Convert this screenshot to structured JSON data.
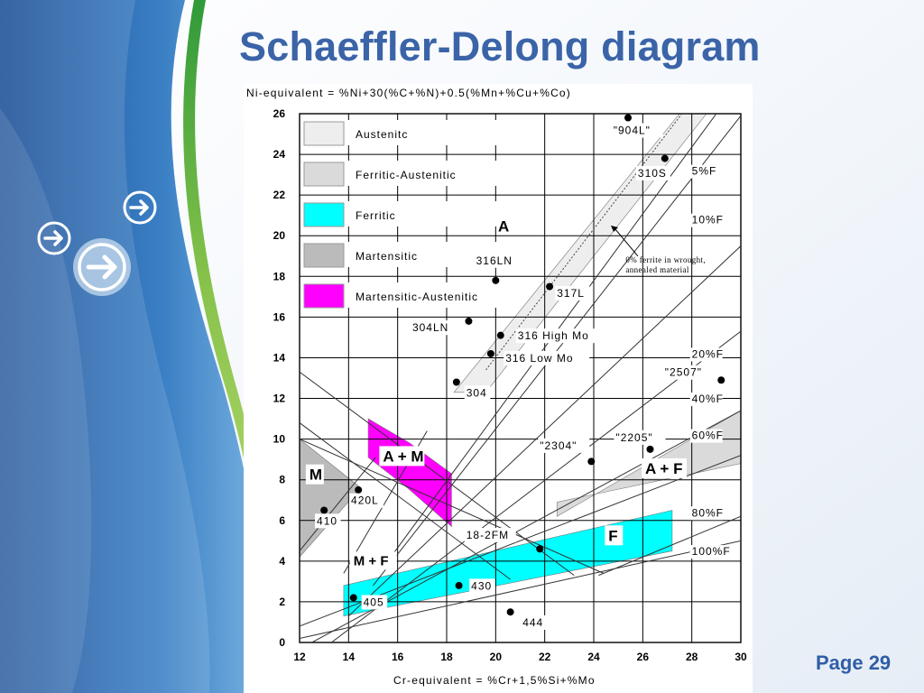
{
  "slide": {
    "title": "Schaeffler-Delong diagram",
    "page_label": "Page 29"
  },
  "colors": {
    "title": "#3b64a8",
    "austenitic": "#eeeeee",
    "ferritic_austenitic": "#dadada",
    "ferritic": "#00ffff",
    "martensitic": "#bbbbbb",
    "martensitic_austenitic": "#ff00ff",
    "grid": "#000000"
  },
  "chart_data": {
    "type": "diagram",
    "xlabel": "Cr-equivalent = %Cr+1,5%Si+%Mo",
    "ylabel": "Ni-equivalent = %Ni+30(%C+%N)+0.5(%Mn+%Cu+%Co)",
    "xlim": [
      12,
      30
    ],
    "ylim": [
      0,
      26
    ],
    "x_ticks": [
      12,
      14,
      16,
      18,
      20,
      22,
      24,
      26,
      28,
      30
    ],
    "y_ticks": [
      0,
      2,
      4,
      6,
      8,
      10,
      12,
      14,
      16,
      18,
      20,
      22,
      24,
      26
    ],
    "grid": true,
    "legend": [
      {
        "label": "Austenitc",
        "color": "#eeeeee"
      },
      {
        "label": "Ferritic-Austenitic",
        "color": "#dadada"
      },
      {
        "label": "Ferritic",
        "color": "#00ffff"
      },
      {
        "label": "Martensitic",
        "color": "#bbbbbb"
      },
      {
        "label": "Martensitic-Austenitic",
        "color": "#ff00ff"
      }
    ],
    "regions": [
      {
        "label": "A",
        "fill": "#eeeeee",
        "label_at": [
          20.1,
          20.2
        ],
        "polygon": [
          [
            18.3,
            12.3
          ],
          [
            19.6,
            12.3
          ],
          [
            28.6,
            26.0
          ],
          [
            27.5,
            26.0
          ]
        ]
      },
      {
        "label": "A + F",
        "fill": "#dadada",
        "label_at": [
          26.1,
          8.3
        ],
        "polygon": [
          [
            22.5,
            6.2
          ],
          [
            30.0,
            11.4
          ],
          [
            30.0,
            8.8
          ],
          [
            22.5,
            6.9
          ]
        ]
      },
      {
        "label": "F",
        "fill": "#00ffff",
        "label_at": [
          24.6,
          5.0
        ],
        "polygon": [
          [
            13.8,
            2.8
          ],
          [
            27.2,
            6.5
          ],
          [
            27.2,
            4.5
          ],
          [
            13.8,
            1.3
          ]
        ]
      },
      {
        "label": "M",
        "fill": "#bbbbbb",
        "label_at": [
          12.4,
          8.0
        ],
        "polygon": [
          [
            12.0,
            10.0
          ],
          [
            14.5,
            7.6
          ],
          [
            12.0,
            4.2
          ]
        ]
      },
      {
        "label": "A + M",
        "fill": "#ff00ff",
        "label_at": [
          15.4,
          8.9
        ],
        "polygon": [
          [
            14.8,
            11.0
          ],
          [
            14.8,
            9.1
          ],
          [
            16.4,
            7.6
          ],
          [
            18.2,
            5.7
          ],
          [
            18.2,
            8.3
          ],
          [
            16.5,
            9.8
          ]
        ]
      }
    ],
    "ferrite_lines": [
      {
        "label": "5%F",
        "label_at": [
          28.0,
          23.0
        ],
        "from": [
          15.6,
          4.0
        ],
        "to": [
          29.0,
          26.0
        ]
      },
      {
        "label": "10%F",
        "label_at": [
          28.0,
          20.6
        ],
        "from": [
          15.0,
          2.8
        ],
        "to": [
          30.0,
          25.9
        ]
      },
      {
        "label": "20%F",
        "label_at": [
          28.0,
          14.0
        ],
        "from": [
          14.0,
          1.3
        ],
        "to": [
          30.0,
          19.5
        ]
      },
      {
        "label": "40%F",
        "label_at": [
          28.0,
          11.8
        ],
        "from": [
          13.3,
          0.0
        ],
        "to": [
          30.0,
          15.3
        ]
      },
      {
        "label": "60%F",
        "label_at": [
          28.0,
          10.0
        ],
        "from": [
          12.5,
          0.0
        ],
        "to": [
          30.0,
          11.4
        ]
      },
      {
        "label": "80%F",
        "label_at": [
          28.0,
          6.2
        ],
        "from": [
          12.0,
          0.8
        ],
        "to": [
          30.0,
          9.2
        ]
      },
      {
        "label": "100%F",
        "label_at": [
          28.0,
          4.3
        ],
        "from": [
          12.0,
          0.2
        ],
        "to": [
          30.0,
          5.0
        ]
      }
    ],
    "boundary_lines": [
      {
        "from": [
          12.0,
          13.3
        ],
        "to": [
          23.2,
          3.3
        ]
      },
      {
        "from": [
          12.0,
          10.8
        ],
        "to": [
          20.6,
          3.1
        ]
      },
      {
        "from": [
          12.0,
          10.0
        ],
        "to": [
          24.4,
          3.4
        ]
      },
      {
        "from": [
          13.8,
          3.4
        ],
        "to": [
          17.2,
          10.4
        ]
      },
      {
        "from": [
          12.0,
          4.5
        ],
        "to": [
          15.1,
          9.1
        ]
      },
      {
        "from": [
          24.2,
          3.3
        ],
        "to": [
          30.0,
          6.2
        ]
      }
    ],
    "dotted_lines": [
      {
        "from": [
          19.6,
          13.4
        ],
        "to": [
          27.6,
          26.0
        ]
      }
    ],
    "annotation": {
      "text_lines": [
        "0% ferrite in wrought,",
        "annealed material"
      ],
      "text_at": [
        25.3,
        18.6
      ],
      "arrow_from": [
        25.8,
        19.0
      ],
      "arrow_to": [
        24.7,
        20.5
      ]
    },
    "points": [
      {
        "label": "\"904L\"",
        "x": 25.4,
        "y": 25.8,
        "label_at": [
          24.8,
          25.0
        ]
      },
      {
        "label": "310S",
        "x": 26.9,
        "y": 23.8,
        "label_at": [
          25.8,
          22.9
        ]
      },
      {
        "label": "316LN",
        "x": 20.0,
        "y": 17.8,
        "label_at": [
          19.2,
          18.6
        ]
      },
      {
        "label": "317L",
        "x": 22.2,
        "y": 17.5,
        "label_at": [
          22.5,
          17.0
        ]
      },
      {
        "label": "304LN",
        "x": 18.9,
        "y": 15.8,
        "label_at": [
          16.6,
          15.3
        ]
      },
      {
        "label": "316 High Mo",
        "x": 20.2,
        "y": 15.1,
        "label_at": [
          20.9,
          14.9
        ]
      },
      {
        "label": "316 Low Mo",
        "x": 19.8,
        "y": 14.2,
        "label_at": [
          20.4,
          13.8
        ]
      },
      {
        "label": "304",
        "x": 18.4,
        "y": 12.8,
        "label_at": [
          18.8,
          12.1
        ]
      },
      {
        "label": "\"2507\"",
        "x": 29.2,
        "y": 12.9,
        "label_at": [
          26.9,
          13.1
        ]
      },
      {
        "label": "\"2304\"",
        "x": 23.9,
        "y": 8.9,
        "label_at": [
          21.8,
          9.5
        ]
      },
      {
        "label": "\"2205\"",
        "x": 26.3,
        "y": 9.5,
        "label_at": [
          24.9,
          9.9
        ]
      },
      {
        "label": "420L",
        "x": 14.4,
        "y": 7.5,
        "label_at": [
          14.1,
          6.8
        ]
      },
      {
        "label": "410",
        "x": 13.0,
        "y": 6.5,
        "label_at": [
          12.7,
          5.8
        ]
      },
      {
        "label": "18-2FM",
        "x": 21.8,
        "y": 4.6,
        "label_at": [
          18.8,
          5.1
        ]
      },
      {
        "label": "430",
        "x": 18.5,
        "y": 2.8,
        "label_at": [
          19.0,
          2.6
        ]
      },
      {
        "label": "405",
        "x": 14.2,
        "y": 2.2,
        "label_at": [
          14.6,
          1.8
        ]
      },
      {
        "label": "444",
        "x": 20.6,
        "y": 1.5,
        "label_at": [
          21.1,
          0.8
        ]
      }
    ],
    "region_text_labels": [
      {
        "label": "M + F",
        "at": [
          14.2,
          3.8
        ]
      }
    ]
  }
}
